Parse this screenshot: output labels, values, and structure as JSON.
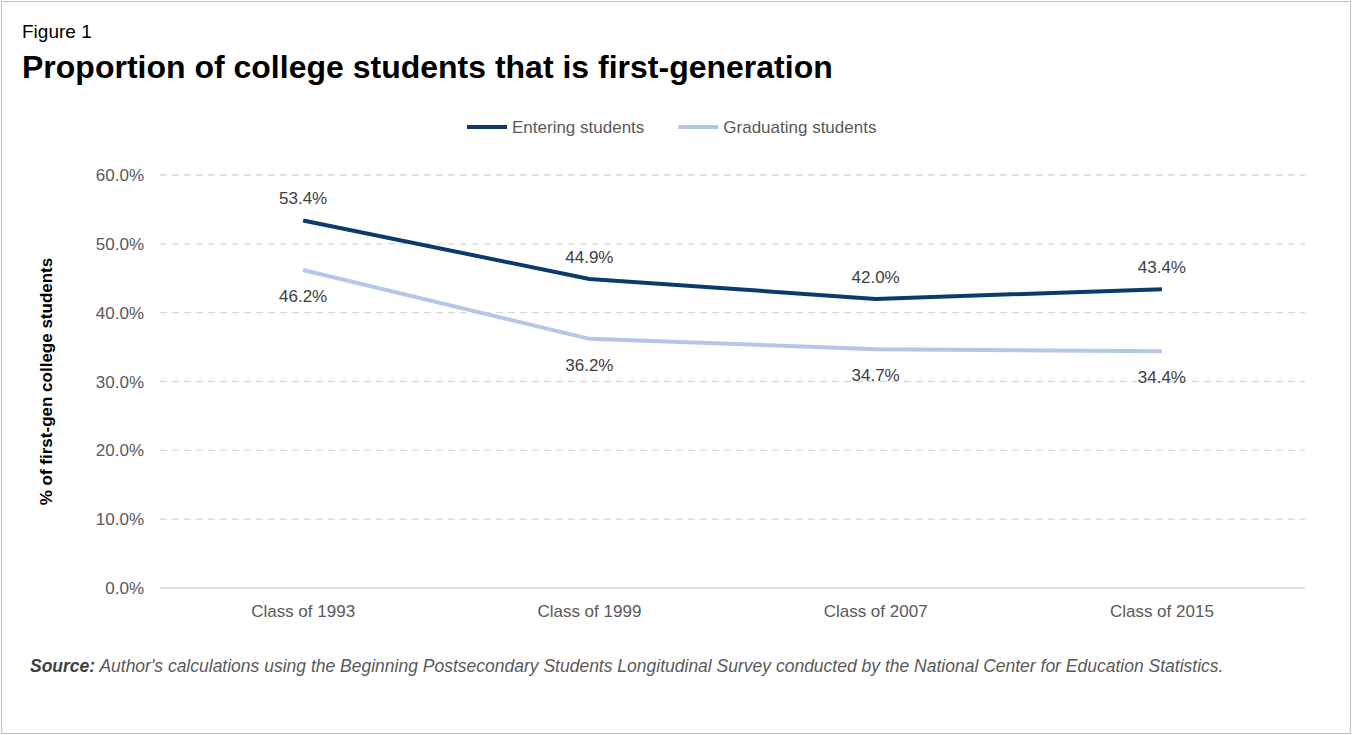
{
  "chart_data": {
    "type": "line",
    "figure": "Figure 1",
    "title": "Proportion of college students that is first-generation",
    "y_label": "% of first-gen college students",
    "source_label": "Source:",
    "source": "Author's calculations using the Beginning Postsecondary Students Longitudinal Survey conducted by the National Center for Education Statistics.",
    "categories": [
      "Class of 1993",
      "Class of 1999",
      "Class of 2007",
      "Class of 2015"
    ],
    "series": [
      {
        "name": "Entering students",
        "color": "#0b3a6b",
        "values": [
          53.4,
          44.9,
          42.0,
          43.4
        ],
        "value_labels": [
          "53.4%",
          "44.9%",
          "42.0%",
          "43.4%"
        ]
      },
      {
        "name": "Graduating students",
        "color": "#b4c7e7",
        "values": [
          46.2,
          36.2,
          34.7,
          34.4
        ],
        "value_labels": [
          "46.2%",
          "36.2%",
          "34.7%",
          "34.4%"
        ]
      }
    ],
    "ylim": [
      0,
      60
    ],
    "yticks": [
      {
        "value": 0,
        "label": "0.0%"
      },
      {
        "value": 10,
        "label": "10.0%"
      },
      {
        "value": 20,
        "label": "20.0%"
      },
      {
        "value": 30,
        "label": "30.0%"
      },
      {
        "value": 40,
        "label": "40.0%"
      },
      {
        "value": 50,
        "label": "50.0%"
      },
      {
        "value": 60,
        "label": "60.0%"
      }
    ],
    "grid": true,
    "legend": "top",
    "data_labels": true
  }
}
